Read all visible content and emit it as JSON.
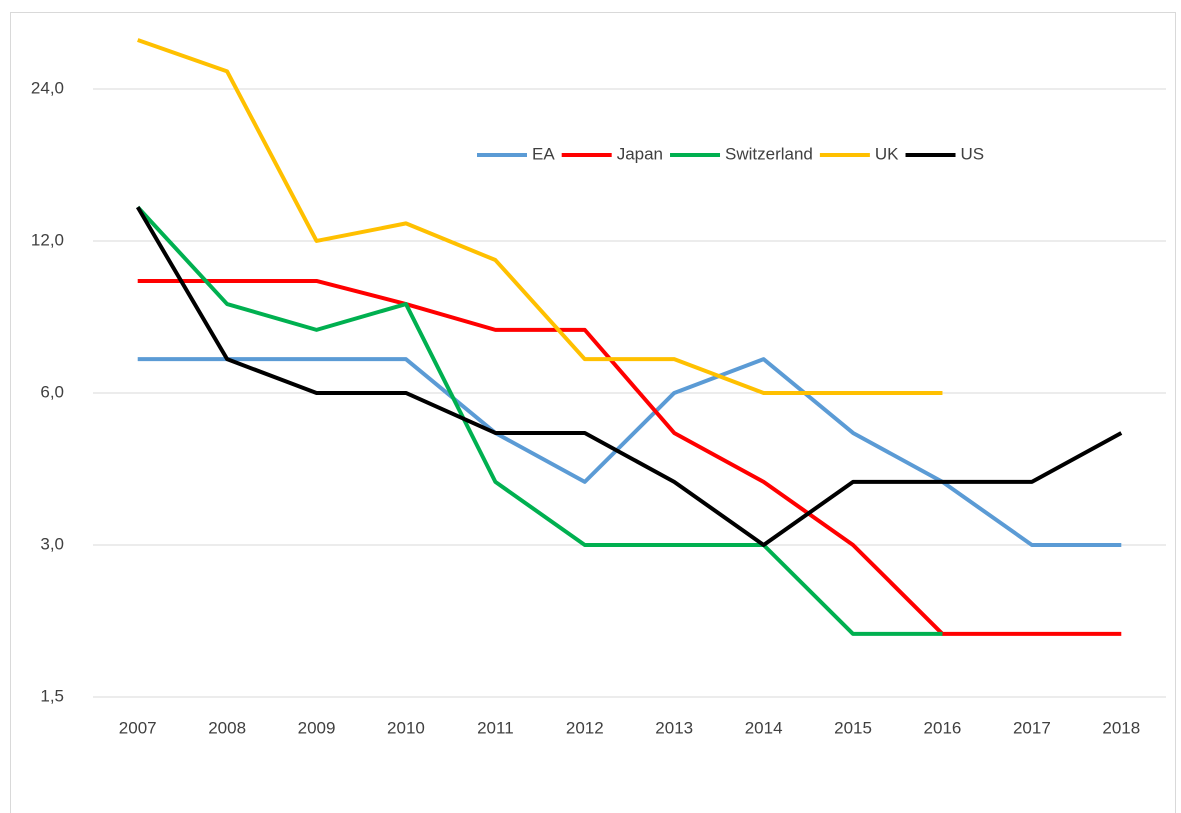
{
  "chart_data": {
    "type": "line",
    "categories": [
      "2007",
      "2008",
      "2009",
      "2010",
      "2011",
      "2012",
      "2013",
      "2014",
      "2015",
      "2016",
      "2017",
      "2018"
    ],
    "series": [
      {
        "name": "EA",
        "color": "#5b9bd5",
        "values": [
          7,
          7,
          7,
          7,
          5,
          4,
          6,
          7,
          5,
          4,
          3,
          3
        ]
      },
      {
        "name": "Japan",
        "color": "#ff0000",
        "values": [
          10,
          10,
          10,
          9,
          8,
          8,
          5,
          4,
          3,
          2,
          2,
          2
        ]
      },
      {
        "name": "Switzerland",
        "color": "#00b050",
        "values": [
          14,
          9,
          8,
          9,
          4,
          3,
          3,
          3,
          2,
          2,
          null,
          null
        ]
      },
      {
        "name": "UK",
        "color": "#ffc000",
        "values": [
          30,
          26,
          12,
          13,
          11,
          7,
          7,
          6,
          6,
          6,
          null,
          null
        ]
      },
      {
        "name": "US",
        "color": "#000000",
        "values": [
          14,
          7,
          6,
          6,
          5,
          5,
          4,
          3,
          4,
          4,
          4,
          5
        ]
      }
    ],
    "ylim": [
      1.5,
      30
    ],
    "yscale": "log",
    "yticks": [
      {
        "value": 1.5,
        "label": "1,5"
      },
      {
        "value": 3,
        "label": "3,0"
      },
      {
        "value": 6,
        "label": "6,0"
      },
      {
        "value": 12,
        "label": "12,0"
      },
      {
        "value": 24,
        "label": "24,0"
      }
    ],
    "grid": true,
    "legend": "top-right"
  }
}
